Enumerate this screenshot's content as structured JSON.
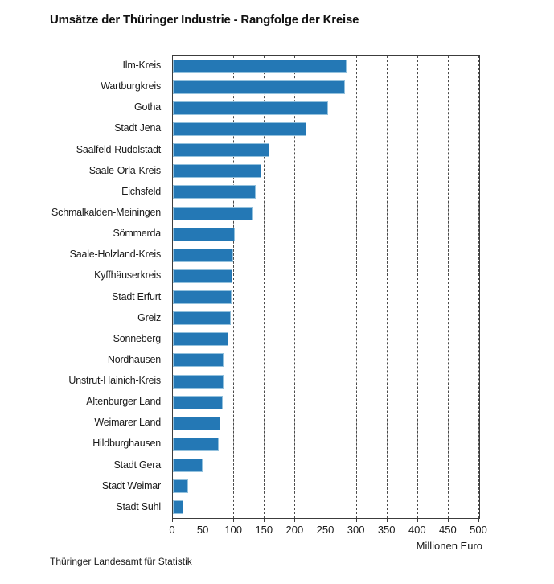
{
  "page": {
    "title": "Umsätze der Thüringer Industrie - Rangfolge der Kreise",
    "source": "Thüringer Landesamt für Statistik"
  },
  "chart_data": {
    "type": "bar",
    "orientation": "horizontal",
    "title": "Umsätze der Thüringer Industrie - Rangfolge der Kreise",
    "xlabel": "Millionen Euro",
    "xlim": [
      0,
      500
    ],
    "xticks": [
      0,
      50,
      100,
      150,
      200,
      250,
      300,
      350,
      400,
      450,
      500
    ],
    "grid": "vertical dashed gridlines every 50",
    "legend": "none",
    "bar_color": "#2478b5",
    "bar_border_color": "#93c1dd",
    "categories": [
      "Ilm-Kreis",
      "Wartburgkreis",
      "Gotha",
      "Stadt Jena",
      "Saalfeld-Rudolstadt",
      "Saale-Orla-Kreis",
      "Eichsfeld",
      "Schmalkalden-Meiningen",
      "Sömmerda",
      "Saale-Holzland-Kreis",
      "Kyffhäuserkreis",
      "Stadt Erfurt",
      "Greiz",
      "Sonneberg",
      "Nordhausen",
      "Unstrut-Hainich-Kreis",
      "Altenburger Land",
      "Weimarer Land",
      "Hildburghausen",
      "Stadt Gera",
      "Stadt Weimar",
      "Stadt Suhl"
    ],
    "values": [
      283,
      281,
      253,
      218,
      157,
      144,
      135,
      131,
      101,
      98,
      97,
      96,
      94,
      90,
      83,
      83,
      82,
      78,
      75,
      49,
      25,
      17
    ]
  }
}
